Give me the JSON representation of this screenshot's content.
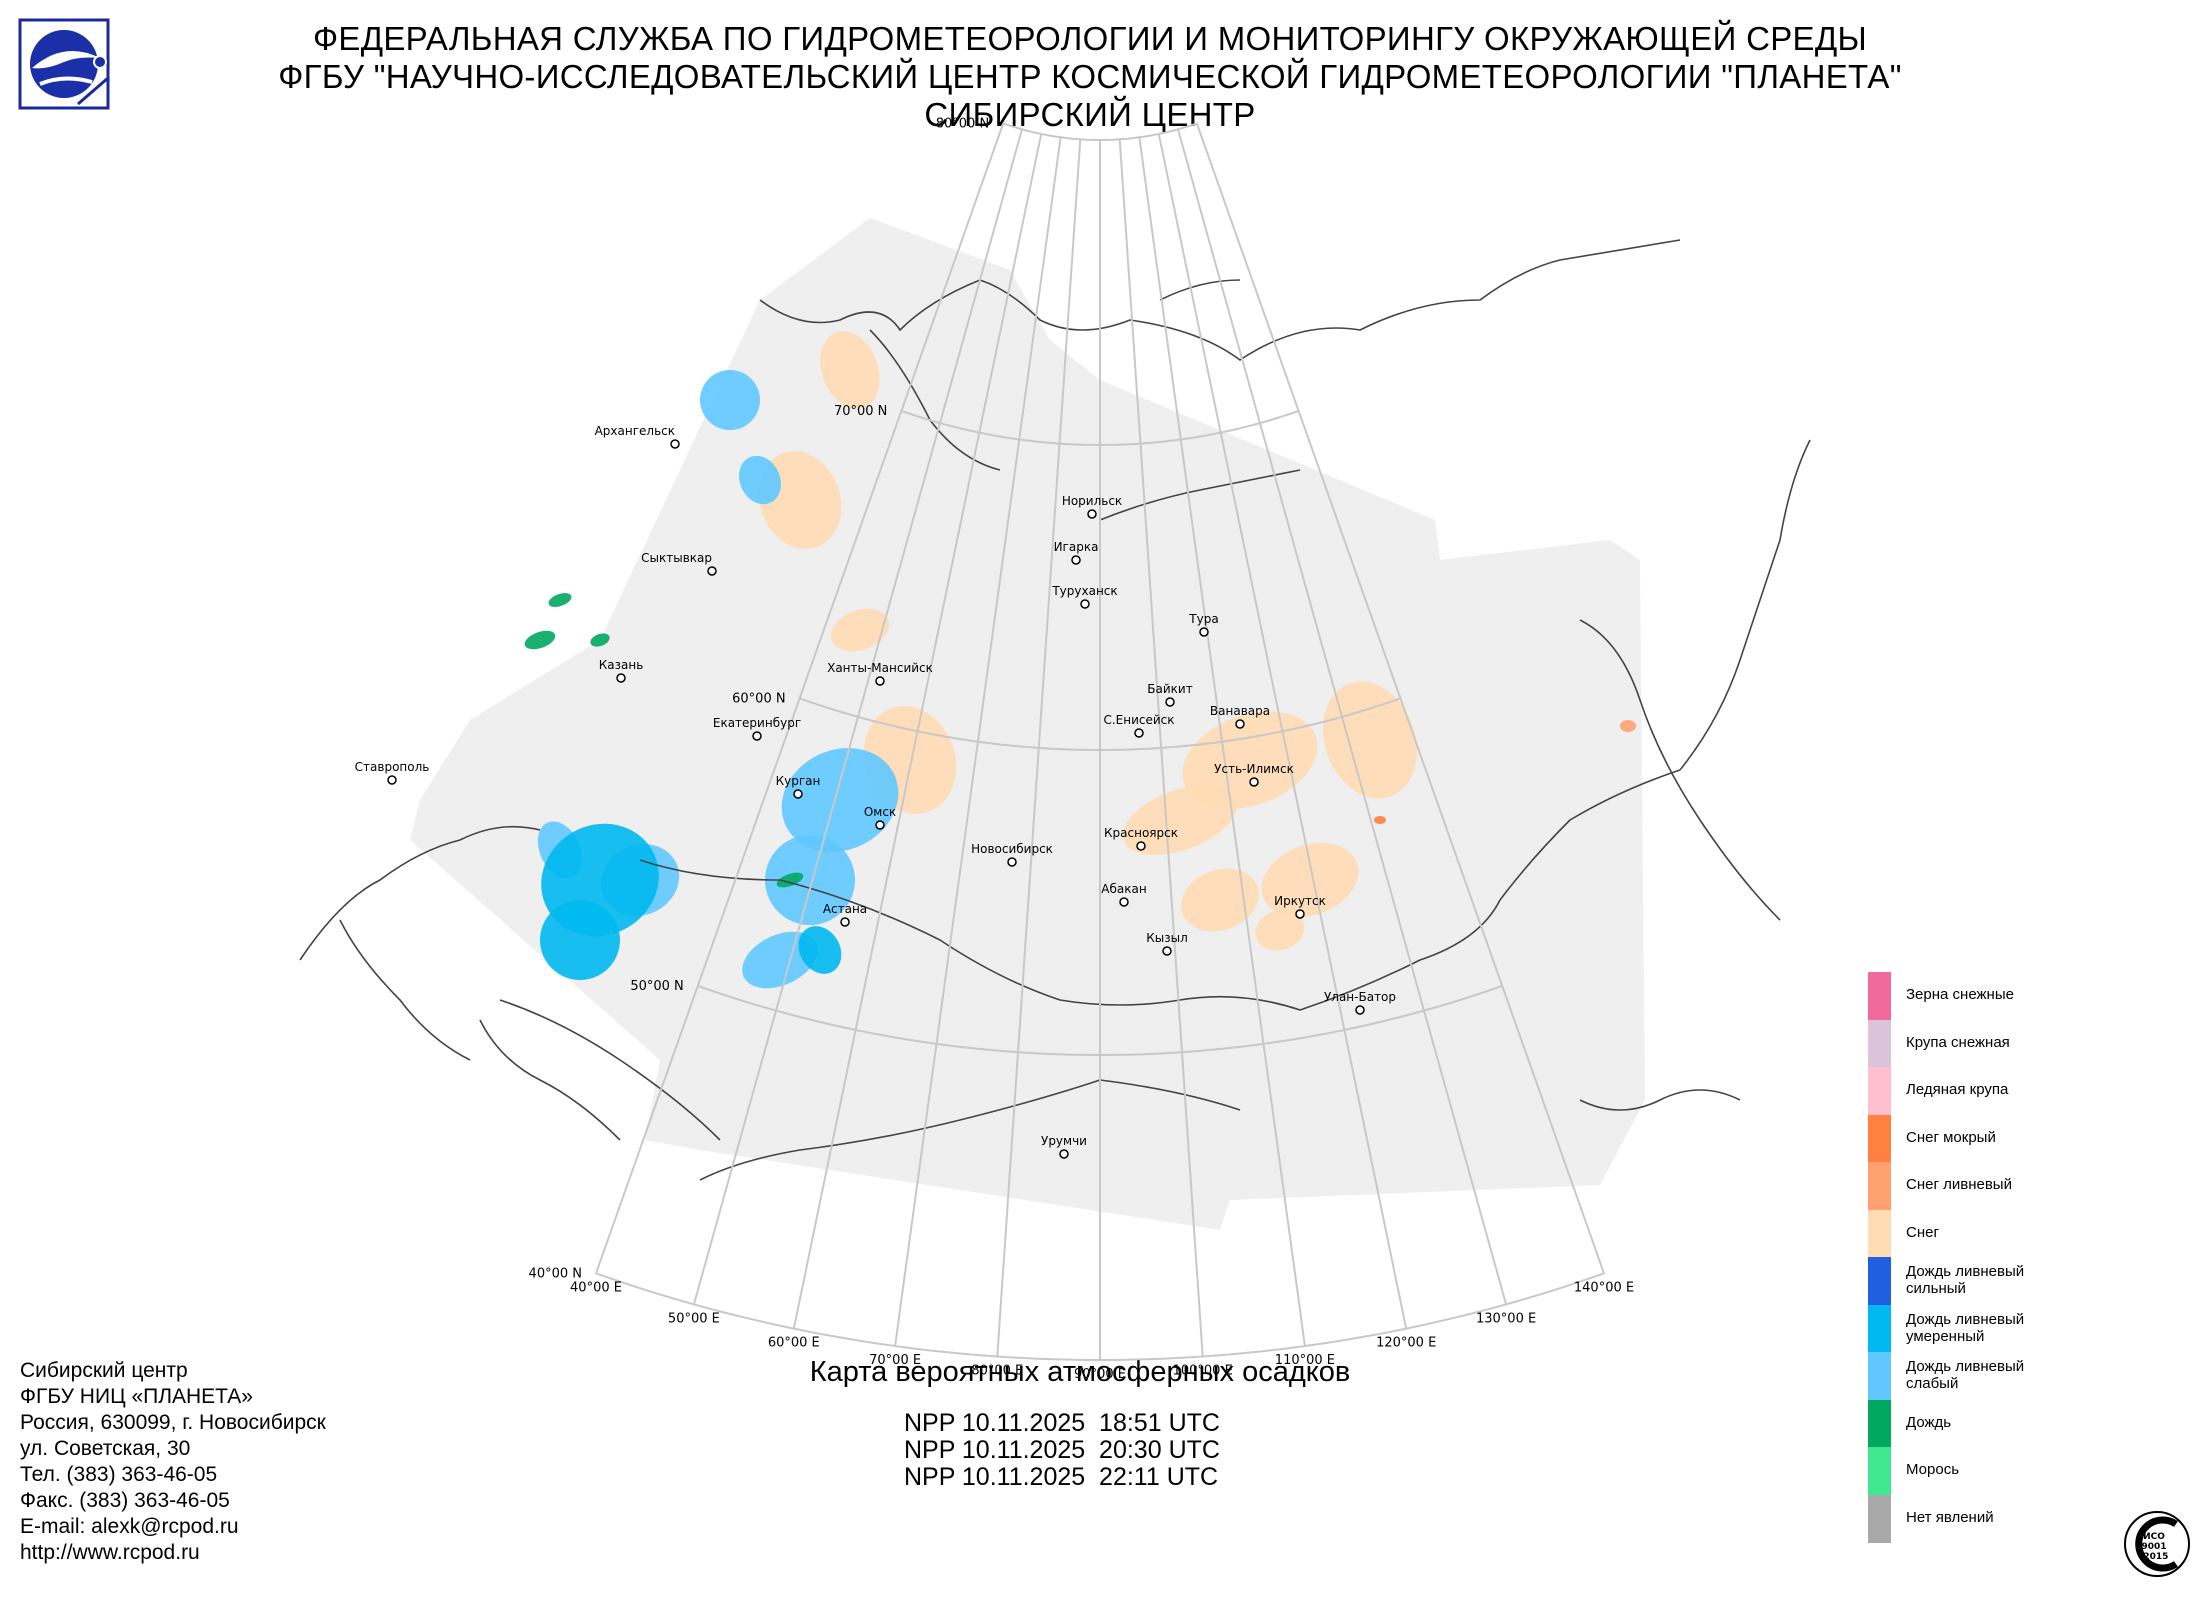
{
  "header": {
    "line1": "ФЕДЕРАЛЬНАЯ СЛУЖБА ПО ГИДРОМЕТЕОРОЛОГИИ И МОНИТОРИНГУ ОКРУЖАЮЩЕЙ СРЕДЫ",
    "line2": "ФГБУ \"НАУЧНО-ИССЛЕДОВАТЕЛЬСКИЙ ЦЕНТР КОСМИЧЕСКОЙ ГИДРОМЕТЕОРОЛОГИИ \"ПЛАНЕТА\"",
    "line3": "СИБИРСКИЙ ЦЕНТР"
  },
  "map": {
    "title": "Карта вероятных атмосферных осадков",
    "passes": [
      "NPP 10.11.2025  18:51 UTC",
      "NPP 10.11.2025  20:30 UTC",
      "NPP 10.11.2025  22:11 UTC"
    ],
    "lat_labels": [
      "80°00 N",
      "70°00 N",
      "60°00 N",
      "50°00 N",
      "40°00 N"
    ],
    "lon_labels": [
      "40°00 E",
      "50°00 E",
      "60°00 E",
      "70°00 E",
      "80°00 E",
      "90°00 E",
      "100°00 E",
      "110°00 E",
      "120°00 E",
      "130°00 E",
      "140°00 E"
    ],
    "cities": [
      "Архангельск",
      "Сыктывкар",
      "Казань",
      "Екатеринбург",
      "Ставрополь",
      "Курган",
      "Ханты-Мансийск",
      "Омск",
      "Астана",
      "Новосибирск",
      "Норильск",
      "Игарка",
      "Туруханск",
      "Тура",
      "Байкит",
      "С.Енисейск",
      "Ванавара",
      "Усть-Илимск",
      "Красноярск",
      "Абакан",
      "Иркутск",
      "Кызыл",
      "Улан-Батор",
      "Урумчи"
    ]
  },
  "legend": [
    {
      "label": "Зерна снежные",
      "color": "#f06a9c"
    },
    {
      "label": "Крупа снежная",
      "color": "#dcc3dc"
    },
    {
      "label": "Ледяная крупа",
      "color": "#ffbfcc"
    },
    {
      "label": "Снег мокрый",
      "color": "#ff8040"
    },
    {
      "label": "Снег ливневый",
      "color": "#ffa070"
    },
    {
      "label": "Снег",
      "color": "#ffdcb4"
    },
    {
      "label": "Дождь ливневый сильный",
      "color": "#2060e0"
    },
    {
      "label": "Дождь ливневый умеренный",
      "color": "#00b8f0"
    },
    {
      "label": "Дождь ливневый слабый",
      "color": "#60c8ff"
    },
    {
      "label": "Дождь",
      "color": "#00a860"
    },
    {
      "label": "Морось",
      "color": "#40e890"
    },
    {
      "label": "Нет явлений",
      "color": "#a8a8a8"
    }
  ],
  "contacts": [
    "Сибирский центр",
    "ФГБУ НИЦ «ПЛАНЕТА»",
    "Россия, 630099, г. Новосибирск",
    "ул. Советская, 30",
    "Тел. (383) 363-46-05",
    "Факс. (383) 363-46-05",
    "E-mail: alexk@rcpod.ru",
    "http://www.rcpod.ru"
  ],
  "iso_badge": {
    "line1": "ИСО",
    "line2": "9001",
    "line3": "-2015"
  }
}
